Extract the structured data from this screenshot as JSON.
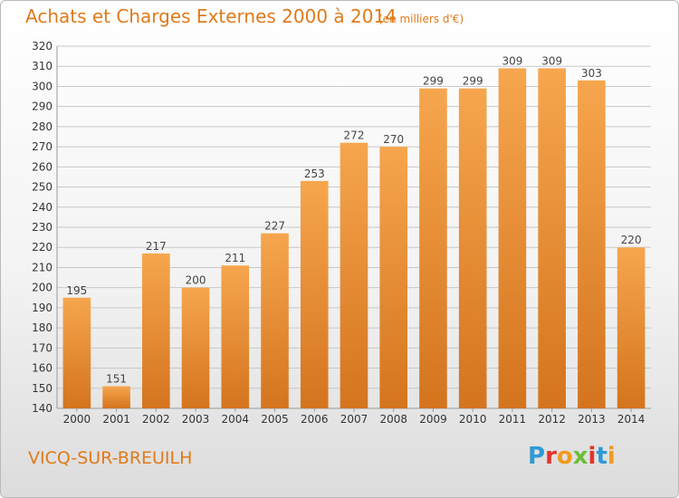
{
  "header": {
    "title": "Achats et Charges Externes 2000 à 2014",
    "unit": "(en milliers d'€)"
  },
  "footer": {
    "place": "VICQ-SUR-BREUILH",
    "logo": "Proxiti",
    "logo_colors": [
      "#2f9ad6",
      "#e2342a",
      "#f29a1f",
      "#6abf3a",
      "#e2342a",
      "#2f9ad6",
      "#f29a1f"
    ]
  },
  "colors": {
    "accent": "#e07a1a",
    "bar_top": "#f6a64e",
    "bar_bottom": "#d4741e",
    "grid": "#c8c8c8"
  },
  "chart_data": {
    "type": "bar",
    "title": "Achats et Charges Externes 2000 à 2014",
    "xlabel": "",
    "ylabel": "",
    "categories": [
      "2000",
      "2001",
      "2002",
      "2003",
      "2004",
      "2005",
      "2006",
      "2007",
      "2008",
      "2009",
      "2010",
      "2011",
      "2012",
      "2013",
      "2014"
    ],
    "values": [
      195,
      151,
      217,
      200,
      211,
      227,
      253,
      272,
      270,
      299,
      299,
      309,
      309,
      303,
      220
    ],
    "ylim": [
      140,
      320
    ],
    "yticks": [
      140,
      150,
      160,
      170,
      180,
      190,
      200,
      210,
      220,
      230,
      240,
      250,
      260,
      270,
      280,
      290,
      300,
      310,
      320
    ],
    "grid": true,
    "legend": "none"
  }
}
